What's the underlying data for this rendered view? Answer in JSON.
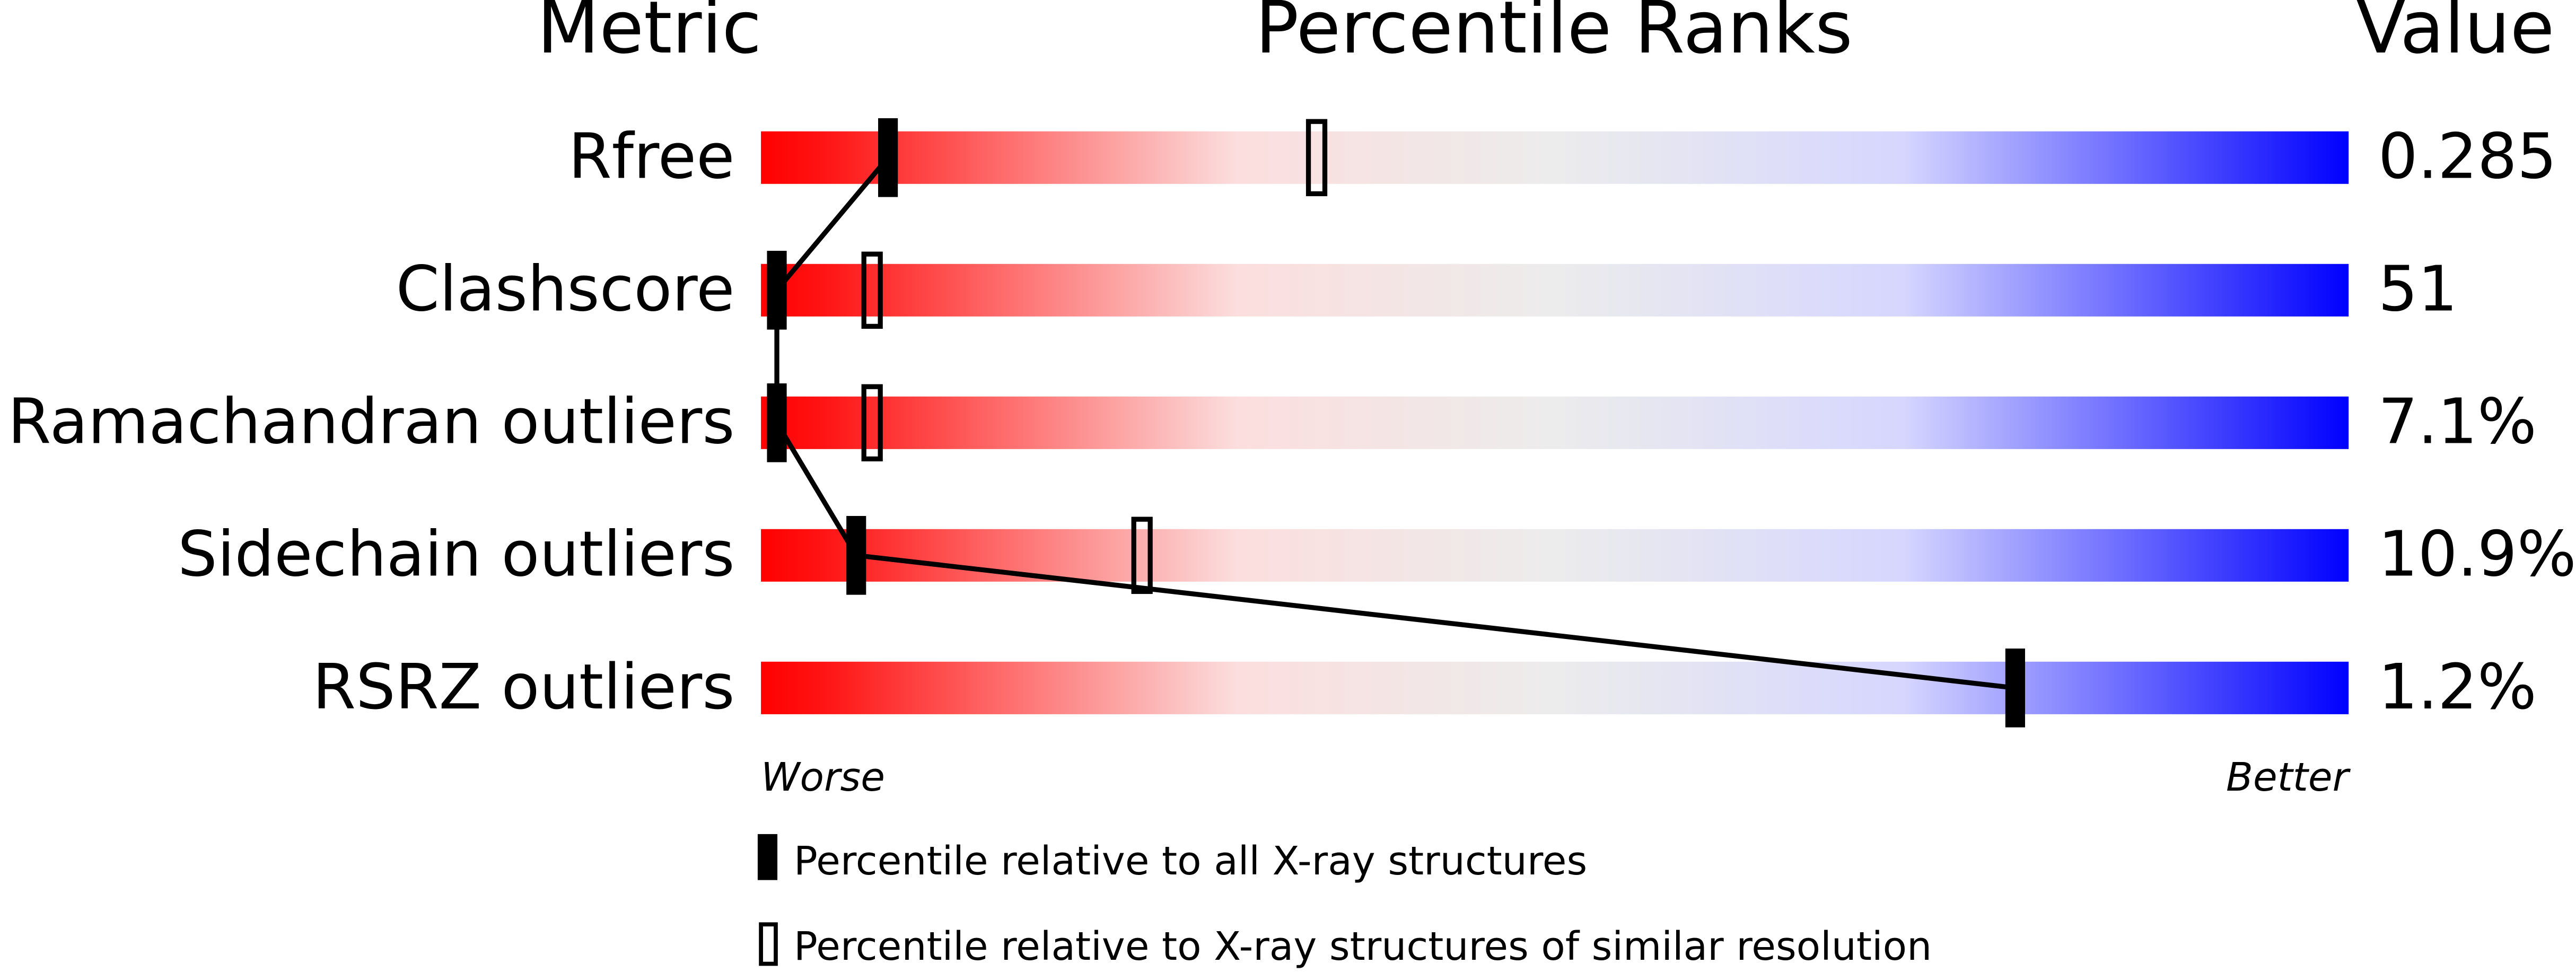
{
  "chart_data": {
    "type": "slider",
    "column_headers": [
      "Metric",
      "Percentile Ranks",
      "Value"
    ],
    "categories": [
      "Rfree",
      "Clashscore",
      "Ramachandran outliers",
      "Sidechain outliers",
      "RSRZ outliers"
    ],
    "metric_values": [
      "0.285",
      "51",
      "7.1%",
      "10.9%",
      "1.2%"
    ],
    "series": [
      {
        "name": "Percentile relative to all X-ray structures",
        "color": "#000000",
        "values": [
          8,
          1,
          1,
          6,
          79
        ]
      },
      {
        "name": "Percentile relative to X-ray structures of similar resolution",
        "color": "#000000",
        "values": [
          35,
          7,
          7,
          24,
          null
        ]
      }
    ],
    "xlim": [
      0,
      100
    ],
    "x_end_labels": [
      "Worse",
      "Better"
    ]
  }
}
